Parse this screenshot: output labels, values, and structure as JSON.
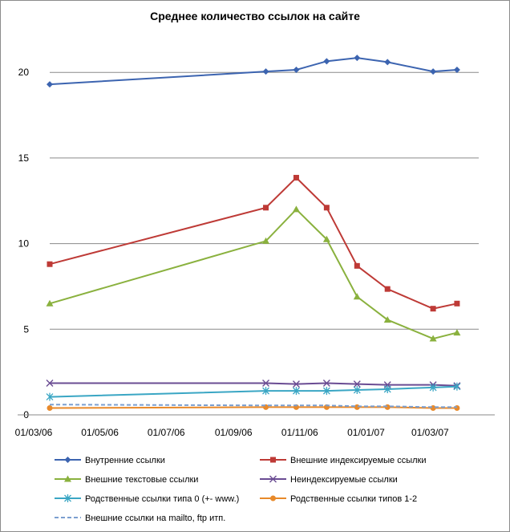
{
  "chart_data": {
    "type": "line",
    "title": "Среднее количество ссылок на сайте",
    "xlabel": "",
    "ylabel": "",
    "xlim": [
      "2006-03-01",
      "2007-03-31"
    ],
    "ylim": [
      0,
      20
    ],
    "yticks": [
      0,
      5,
      10,
      15,
      20
    ],
    "xticks": [
      {
        "date": "2006-03-01",
        "label": "01/03/06"
      },
      {
        "date": "2006-05-01",
        "label": "01/05/06"
      },
      {
        "date": "2006-07-01",
        "label": "01/07/06"
      },
      {
        "date": "2006-09-01",
        "label": "01/09/06"
      },
      {
        "date": "2006-11-01",
        "label": "01/11/06"
      },
      {
        "date": "2007-01-01",
        "label": "01/01/07"
      },
      {
        "date": "2007-03-01",
        "label": "01/03/07"
      }
    ],
    "grid": "horizontal",
    "legend_position": "bottom",
    "x": [
      "2006-03-01",
      "2006-09-16",
      "2006-10-14",
      "2006-11-11",
      "2006-12-09",
      "2007-01-06",
      "2007-02-17",
      "2007-03-11"
    ],
    "series": [
      {
        "name": "Внутренние ссылки",
        "color": "#3c64b0",
        "marker": "diamond",
        "values": [
          19.3,
          20.05,
          20.15,
          20.65,
          20.85,
          20.6,
          20.05,
          20.15
        ]
      },
      {
        "name": "Внешние индексируемые ссылки",
        "color": "#be3a36",
        "marker": "square",
        "values": [
          8.8,
          12.1,
          13.85,
          12.1,
          8.7,
          7.35,
          6.2,
          6.5
        ]
      },
      {
        "name": "Внешние текстовые ссылки",
        "color": "#8ab13e",
        "marker": "triangle",
        "values": [
          6.5,
          10.15,
          12.0,
          10.25,
          6.9,
          5.55,
          4.45,
          4.8
        ]
      },
      {
        "name": "Неиндексируемые ссылки",
        "color": "#6a4c93",
        "marker": "x",
        "values": [
          1.85,
          1.85,
          1.8,
          1.85,
          1.8,
          1.75,
          1.75,
          1.7
        ]
      },
      {
        "name": "Родственные ссылки типа 0 (+- www.)",
        "color": "#3aa6c4",
        "marker": "star",
        "values": [
          1.05,
          1.4,
          1.4,
          1.4,
          1.45,
          1.5,
          1.6,
          1.65
        ]
      },
      {
        "name": "Родственные ссылки типов 1-2",
        "color": "#e8892a",
        "marker": "circle",
        "values": [
          0.4,
          0.45,
          0.45,
          0.45,
          0.45,
          0.45,
          0.4,
          0.4
        ]
      },
      {
        "name": "Внешние ссылки на mailto, ftp итп.",
        "color": "#7b9fd0",
        "marker": "none",
        "dash": true,
        "values": [
          0.6,
          0.55,
          0.55,
          0.55,
          0.5,
          0.5,
          0.45,
          0.45
        ]
      }
    ]
  }
}
